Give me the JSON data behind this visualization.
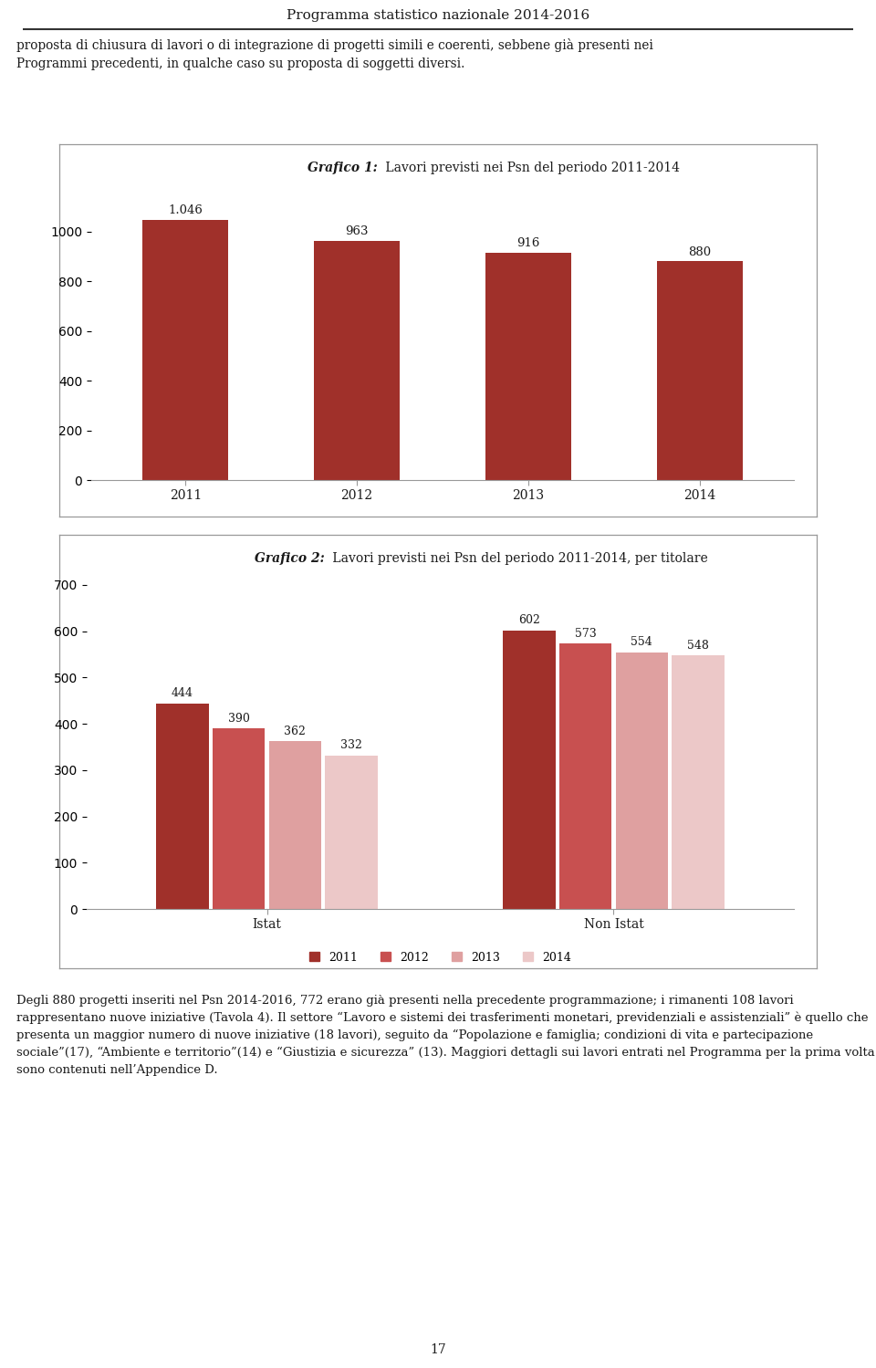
{
  "page_title": "Programma statistico nazionale 2014-2016",
  "intro_line1": "proposta di chiusura di lavori o di integrazione di progetti simili e coerenti, sebbene già presenti nei",
  "intro_line2": "Programmi precedenti, in qualche caso su proposta di soggetti diversi.",
  "chart1_title_bold": "Grafico 1:",
  "chart1_title_rest": " Lavori previsti nei Psn del periodo 2011-2014",
  "chart1_categories": [
    "2011",
    "2012",
    "2013",
    "2014"
  ],
  "chart1_values": [
    1046,
    963,
    916,
    880
  ],
  "chart1_labels": [
    "1.046",
    "963",
    "916",
    "880"
  ],
  "chart1_bar_color": "#A0302A",
  "chart1_ylim": [
    0,
    1150
  ],
  "chart2_title_bold": "Grafico 2:",
  "chart2_title_rest": " Lavori previsti nei Psn del periodo 2011-2014, per titolare",
  "chart2_groups": [
    "Istat",
    "Non Istat"
  ],
  "chart2_istat": [
    444,
    390,
    362,
    332
  ],
  "chart2_nonistat": [
    602,
    573,
    554,
    548
  ],
  "chart2_istat_labels": [
    "444",
    "390",
    "362",
    "332"
  ],
  "chart2_nonistat_labels": [
    "602",
    "573",
    "554",
    "548"
  ],
  "chart2_colors": [
    "#A0302A",
    "#C85050",
    "#DFA0A0",
    "#ECC8C8"
  ],
  "chart2_ylim": [
    0,
    700
  ],
  "legend_labels": [
    "2011",
    "2012",
    "2013",
    "2014"
  ],
  "body_text_1": "Degli 880 progetti inseriti nel Psn 2014-2016, 772 erano già presenti nella precedente programmazione; i rimanenti 108 lavori rappresentano nuove iniziative (Tavola 4). Il settore “Lavoro e sistemi dei trasferimenti monetari, previdenziali e assistenziali” è quello che presenta un maggior numero di nuove iniziative (18 lavori), seguito da “Popolazione e famiglia; condizioni di vita e partecipazione sociale”(17), “Ambiente e",
  "body_text_2": "territorio”(14) e “Giustizia e sicurezza” (13). Maggiori dettagli sui lavori entrati nel Programma per la prima volta sono contenuti nell’Appendice D.",
  "page_number": "17",
  "bg_color": "#ffffff",
  "border_color": "#999999",
  "text_color": "#1a1a1a"
}
